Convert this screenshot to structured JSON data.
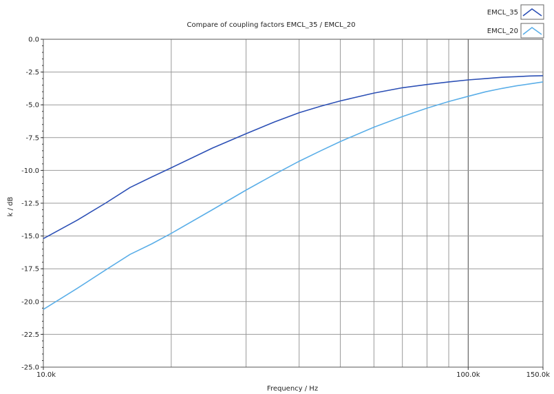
{
  "chart_data": {
    "type": "line",
    "title": "Compare of coupling factors EMCL_35 / EMCL_20",
    "xlabel": "Frequency / Hz",
    "ylabel": "k / dB",
    "x_scale": "log",
    "xlim": [
      10000,
      150000
    ],
    "ylim": [
      -25,
      0
    ],
    "x_tick_labels": [
      {
        "value": 10000,
        "label": "10.0k"
      },
      {
        "value": 100000,
        "label": "100.0k"
      },
      {
        "value": 150000,
        "label": "150.0k"
      }
    ],
    "y_ticks": [
      0,
      -2.5,
      -5,
      -7.5,
      -10,
      -12.5,
      -15,
      -17.5,
      -20,
      -22.5,
      -25
    ],
    "y_tick_labels": [
      "0.0",
      "-2.5",
      "-5.0",
      "-7.5",
      "-10.0",
      "-12.5",
      "-15.0",
      "-17.5",
      "-20.0",
      "-22.5",
      "-25.0"
    ],
    "grid": true,
    "legend_position": "top-right",
    "x": [
      10000,
      12000,
      14000,
      16000,
      18000,
      20000,
      25000,
      30000,
      35000,
      40000,
      45000,
      50000,
      60000,
      70000,
      80000,
      90000,
      100000,
      110000,
      120000,
      130000,
      140000,
      150000
    ],
    "series": [
      {
        "name": "EMCL_35",
        "color": "#2b4fb5",
        "values": [
          -15.2,
          -13.8,
          -12.5,
          -11.3,
          -10.5,
          -9.8,
          -8.3,
          -7.2,
          -6.3,
          -5.6,
          -5.1,
          -4.7,
          -4.1,
          -3.7,
          -3.45,
          -3.25,
          -3.1,
          -3.0,
          -2.9,
          -2.85,
          -2.8,
          -2.78
        ]
      },
      {
        "name": "EMCL_20",
        "color": "#5aaee8",
        "values": [
          -20.6,
          -19.0,
          -17.6,
          -16.4,
          -15.6,
          -14.8,
          -13.0,
          -11.5,
          -10.3,
          -9.3,
          -8.5,
          -7.8,
          -6.7,
          -5.9,
          -5.25,
          -4.75,
          -4.35,
          -4.0,
          -3.75,
          -3.55,
          -3.4,
          -3.25
        ]
      }
    ]
  }
}
